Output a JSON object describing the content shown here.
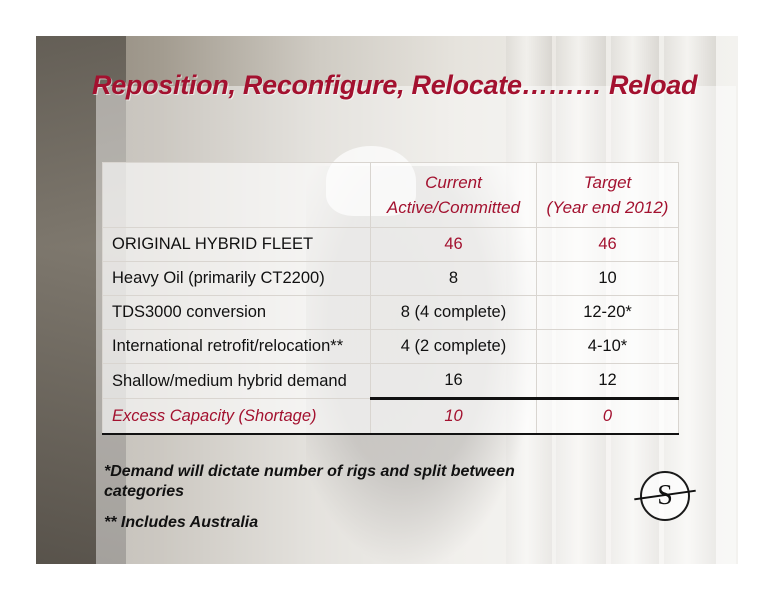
{
  "title": "Reposition, Reconfigure, Relocate……… Reload",
  "table": {
    "headers": {
      "current_line1": "Current",
      "current_line2": "Active/Committed",
      "target_line1": "Target",
      "target_line2": "(Year end 2012)"
    },
    "rows": [
      {
        "label": "ORIGINAL HYBRID FLEET",
        "current": "46",
        "target": "46"
      },
      {
        "label": "Heavy Oil (primarily CT2200)",
        "current": "8",
        "target": "10"
      },
      {
        "label": "TDS3000 conversion",
        "current": "8 (4 complete)",
        "target": "12-20*"
      },
      {
        "label": "International retrofit/relocation**",
        "current": "4 (2 complete)",
        "target": "4-10*"
      },
      {
        "label": "Shallow/medium hybrid demand",
        "current": "16",
        "target": "12"
      },
      {
        "label": "Excess Capacity (Shortage)",
        "current": "10",
        "target": "0"
      }
    ]
  },
  "notes": {
    "note1": "*Demand will dictate number of rigs and split between categories",
    "note2": "** Includes Australia"
  },
  "logo": {
    "letter": "S"
  },
  "colors": {
    "accent": "#a3112f"
  }
}
